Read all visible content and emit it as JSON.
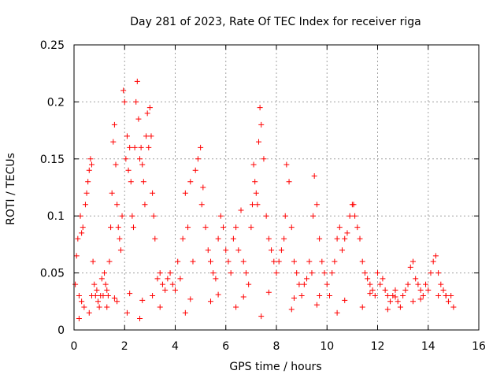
{
  "chart_data": {
    "type": "scatter",
    "title": "Day 281 of 2023, Rate Of TEC Index for receiver riga",
    "xlabel": "GPS time / hours",
    "ylabel": "ROTI / TECUs",
    "xlim": [
      0,
      16
    ],
    "ylim": [
      0,
      0.25
    ],
    "x_ticks": [
      "0",
      "2",
      "4",
      "6",
      "8",
      "10",
      "12",
      "14",
      "16"
    ],
    "y_ticks": [
      "0",
      "0.05",
      "0.1",
      "0.15",
      "0.2",
      "0.25"
    ],
    "grid": true,
    "marker": "+",
    "color": "#ff0000",
    "series": [
      {
        "name": "riga",
        "x": [
          0.05,
          0.1,
          0.15,
          0.2,
          0.25,
          0.3,
          0.35,
          0.4,
          0.45,
          0.5,
          0.55,
          0.6,
          0.65,
          0.7,
          0.75,
          0.8,
          0.85,
          0.9,
          0.95,
          1.0,
          1.05,
          1.1,
          1.15,
          1.2,
          1.25,
          1.3,
          1.35,
          1.4,
          1.45,
          1.5,
          1.55,
          1.6,
          1.65,
          1.7,
          1.75,
          1.8,
          1.85,
          1.9,
          1.95,
          2.0,
          2.05,
          2.1,
          2.15,
          2.2,
          2.25,
          2.3,
          2.35,
          2.4,
          2.45,
          2.5,
          2.55,
          2.6,
          2.65,
          2.7,
          2.75,
          2.8,
          2.85,
          2.9,
          2.95,
          3.0,
          3.05,
          3.1,
          3.15,
          3.2,
          3.3,
          3.4,
          3.5,
          3.6,
          3.7,
          3.8,
          3.9,
          4.0,
          4.1,
          4.2,
          4.3,
          4.4,
          4.5,
          4.6,
          4.7,
          4.8,
          4.9,
          5.0,
          5.05,
          5.1,
          5.2,
          5.3,
          5.4,
          5.5,
          5.6,
          5.7,
          5.8,
          5.9,
          6.0,
          6.1,
          6.2,
          6.3,
          6.4,
          6.5,
          6.6,
          6.7,
          6.8,
          6.9,
          7.0,
          7.05,
          7.1,
          7.15,
          7.2,
          7.25,
          7.3,
          7.35,
          7.4,
          7.5,
          7.6,
          7.7,
          7.8,
          7.9,
          8.0,
          8.1,
          8.2,
          8.3,
          8.35,
          8.4,
          8.5,
          8.6,
          8.7,
          8.8,
          8.9,
          9.0,
          9.1,
          9.2,
          9.3,
          9.4,
          9.45,
          9.5,
          9.6,
          9.7,
          9.8,
          9.9,
          10.0,
          10.1,
          10.2,
          10.3,
          10.4,
          10.5,
          10.6,
          10.7,
          10.8,
          10.9,
          11.0,
          11.05,
          11.1,
          11.2,
          11.3,
          11.4,
          11.5,
          11.6,
          11.7,
          11.8,
          11.9,
          12.0,
          12.1,
          12.2,
          12.3,
          12.4,
          12.5,
          12.6,
          12.7,
          12.8,
          12.9,
          13.0,
          13.1,
          13.2,
          13.3,
          13.4,
          13.5,
          13.6,
          13.7,
          13.8,
          13.9,
          14.0,
          14.1,
          14.2,
          14.3,
          14.4,
          14.5,
          14.6,
          14.7,
          14.8,
          14.9,
          15.0,
          0.2,
          0.6,
          1.3,
          1.7,
          2.1,
          2.6,
          3.4,
          4.4,
          5.4,
          6.4,
          7.4,
          8.6,
          9.6,
          10.4,
          11.4,
          12.4,
          13.4,
          14.4,
          0.3,
          0.7,
          1.6,
          2.2,
          2.7,
          3.1,
          4.6,
          5.7,
          6.7,
          7.7,
          8.7,
          9.7,
          10.7,
          11.7,
          12.7,
          13.7,
          14.7
        ],
        "y": [
          0.04,
          0.065,
          0.08,
          0.03,
          0.1,
          0.085,
          0.09,
          0.02,
          0.11,
          0.12,
          0.13,
          0.14,
          0.15,
          0.145,
          0.06,
          0.04,
          0.03,
          0.035,
          0.025,
          0.02,
          0.03,
          0.045,
          0.03,
          0.05,
          0.04,
          0.035,
          0.03,
          0.06,
          0.09,
          0.12,
          0.165,
          0.18,
          0.145,
          0.11,
          0.09,
          0.08,
          0.07,
          0.1,
          0.21,
          0.2,
          0.15,
          0.17,
          0.14,
          0.16,
          0.13,
          0.1,
          0.09,
          0.16,
          0.2,
          0.218,
          0.185,
          0.15,
          0.16,
          0.145,
          0.13,
          0.11,
          0.17,
          0.19,
          0.16,
          0.195,
          0.17,
          0.12,
          0.1,
          0.08,
          0.045,
          0.05,
          0.04,
          0.035,
          0.045,
          0.05,
          0.04,
          0.035,
          0.06,
          0.045,
          0.08,
          0.12,
          0.09,
          0.13,
          0.06,
          0.14,
          0.15,
          0.16,
          0.11,
          0.125,
          0.09,
          0.07,
          0.06,
          0.05,
          0.045,
          0.08,
          0.1,
          0.09,
          0.07,
          0.06,
          0.05,
          0.08,
          0.09,
          0.07,
          0.105,
          0.06,
          0.05,
          0.04,
          0.09,
          0.11,
          0.145,
          0.13,
          0.12,
          0.11,
          0.165,
          0.195,
          0.18,
          0.15,
          0.1,
          0.08,
          0.07,
          0.06,
          0.05,
          0.06,
          0.07,
          0.08,
          0.1,
          0.145,
          0.13,
          0.09,
          0.06,
          0.05,
          0.04,
          0.03,
          0.04,
          0.045,
          0.06,
          0.05,
          0.1,
          0.135,
          0.11,
          0.08,
          0.06,
          0.05,
          0.04,
          0.03,
          0.05,
          0.06,
          0.08,
          0.09,
          0.07,
          0.08,
          0.085,
          0.1,
          0.11,
          0.11,
          0.1,
          0.09,
          0.08,
          0.06,
          0.05,
          0.045,
          0.04,
          0.035,
          0.03,
          0.05,
          0.04,
          0.045,
          0.035,
          0.03,
          0.025,
          0.03,
          0.035,
          0.025,
          0.02,
          0.03,
          0.035,
          0.04,
          0.055,
          0.06,
          0.045,
          0.04,
          0.035,
          0.03,
          0.04,
          0.035,
          0.05,
          0.06,
          0.065,
          0.05,
          0.04,
          0.035,
          0.03,
          0.025,
          0.03,
          0.02,
          0.01,
          0.015,
          0.02,
          0.025,
          0.015,
          0.01,
          0.02,
          0.015,
          0.025,
          0.02,
          0.012,
          0.018,
          0.022,
          0.015,
          0.02,
          0.018,
          0.025,
          0.03,
          0.025,
          0.03,
          0.028,
          0.032,
          0.026,
          0.03,
          0.027,
          0.031,
          0.029,
          0.033,
          0.028,
          0.03,
          0.026,
          0.032,
          0.029,
          0.027,
          0.03
        ]
      }
    ]
  }
}
